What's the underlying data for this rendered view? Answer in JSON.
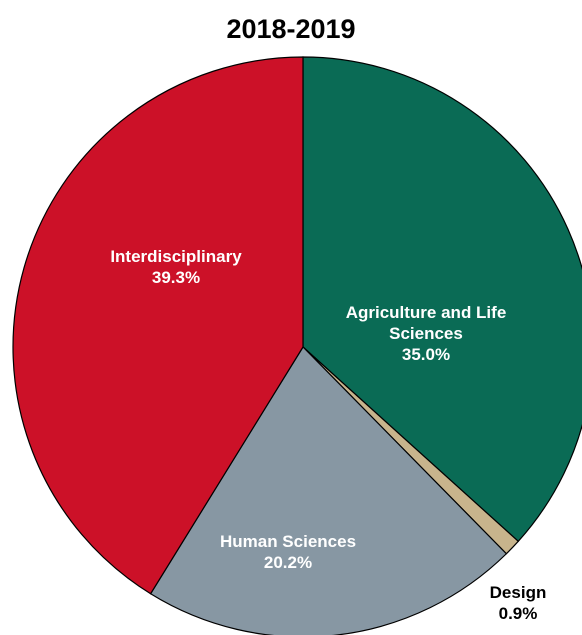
{
  "chart_data": {
    "type": "pie",
    "title": "2018-2019",
    "slices": [
      {
        "label_lines": [
          "Agriculture and Life",
          "Sciences"
        ],
        "pct_label": "35.0%",
        "value": 35.0,
        "color": "#0a6b55",
        "label_color": "#ffffff"
      },
      {
        "label_lines": [
          "Design"
        ],
        "pct_label": "0.9%",
        "value": 0.9,
        "color": "#c8b48c",
        "label_color": "#000000"
      },
      {
        "label_lines": [
          "Human Sciences"
        ],
        "pct_label": "20.2%",
        "value": 20.2,
        "color": "#8797a3",
        "label_color": "#ffffff"
      },
      {
        "label_lines": [
          "Interdisciplinary"
        ],
        "pct_label": "39.3%",
        "value": 39.3,
        "color": "#cc1128",
        "label_color": "#ffffff"
      }
    ]
  }
}
